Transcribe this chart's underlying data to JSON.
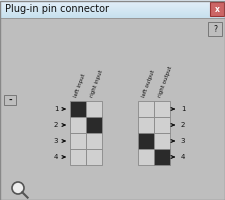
{
  "title": "Plug-in pin connector",
  "bg_color": "#bebebe",
  "title_bg_top": "#c8e4f8",
  "title_bg_bot": "#a0c8e8",
  "dark_cell": "#2a2a2a",
  "light_cell": "#d0d0d0",
  "border_color": "#888888",
  "input_labels": [
    "left input",
    "right input"
  ],
  "output_labels": [
    "left output",
    "right output"
  ],
  "input_filled": [
    0,
    1,
    -1,
    -1
  ],
  "output_filled": [
    -1,
    -1,
    0,
    1
  ],
  "n_rows": 4,
  "n_cols": 2,
  "arrow_color": "#111111",
  "text_color": "#111111",
  "figw": 2.26,
  "figh": 2.0,
  "dpi": 100
}
